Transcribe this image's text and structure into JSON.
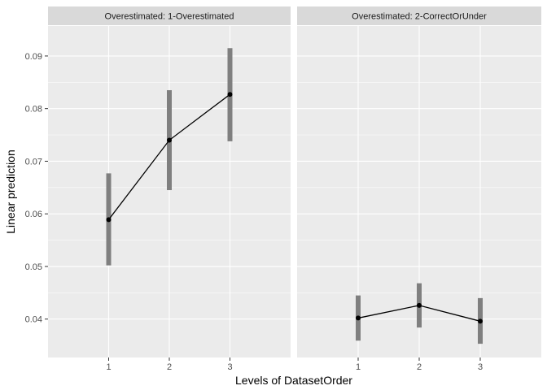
{
  "chart_data": {
    "type": "line",
    "title": "",
    "xlabel": "Levels of DatasetOrder",
    "ylabel": "Linear prediction",
    "categories": [
      "1",
      "2",
      "3"
    ],
    "ylim": [
      0.0327,
      0.0957
    ],
    "yticks": [
      0.04,
      0.05,
      0.06,
      0.07,
      0.08,
      0.09
    ],
    "ytick_labels": [
      "0.04",
      "0.05",
      "0.06",
      "0.07",
      "0.08",
      "0.09"
    ],
    "grid": true,
    "legend": "none",
    "colors": {
      "panel_bg": "#ebebeb",
      "grid_major": "#ffffff",
      "strip_bg": "#d9d9d9",
      "line": "#000000",
      "errorbar": "#7f7f7f"
    },
    "panels": [
      {
        "label": "Overestimated: 1-Overestimated",
        "values": [
          0.0589,
          0.074,
          0.0827
        ],
        "lower": [
          0.0502,
          0.0645,
          0.0738
        ],
        "upper": [
          0.0677,
          0.0835,
          0.0915
        ]
      },
      {
        "label": "Overestimated: 2-CorrectOrUnder",
        "values": [
          0.0402,
          0.0426,
          0.0396
        ],
        "lower": [
          0.0359,
          0.0384,
          0.0353
        ],
        "upper": [
          0.0445,
          0.0468,
          0.044
        ]
      }
    ]
  }
}
